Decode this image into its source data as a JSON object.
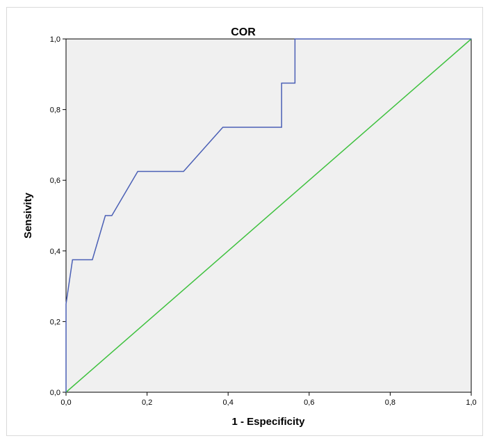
{
  "chart_data": {
    "type": "line",
    "title": "COR",
    "xlabel": "1 - Especificity",
    "ylabel": "Sensivity",
    "xlim": [
      0,
      1
    ],
    "ylim": [
      0,
      1
    ],
    "x_ticks": [
      "0,0",
      "0,2",
      "0,4",
      "0,6",
      "0,8",
      "1,0"
    ],
    "y_ticks": [
      "0,0",
      "0,2",
      "0,4",
      "0,6",
      "0,8",
      "1,0"
    ],
    "grid": false,
    "plot_background": "#f0f0f0",
    "series": [
      {
        "color": "#4a5fb5",
        "points": [
          [
            0.0,
            0.0
          ],
          [
            0.0,
            0.25
          ],
          [
            0.016,
            0.375
          ],
          [
            0.065,
            0.375
          ],
          [
            0.097,
            0.5
          ],
          [
            0.113,
            0.5
          ],
          [
            0.177,
            0.625
          ],
          [
            0.29,
            0.625
          ],
          [
            0.387,
            0.75
          ],
          [
            0.532,
            0.75
          ],
          [
            0.532,
            0.875
          ],
          [
            0.565,
            0.875
          ],
          [
            0.565,
            1.0
          ],
          [
            1.0,
            1.0
          ]
        ]
      },
      {
        "color": "#3ec13e",
        "points": [
          [
            0,
            0
          ],
          [
            1,
            1
          ]
        ]
      }
    ]
  }
}
